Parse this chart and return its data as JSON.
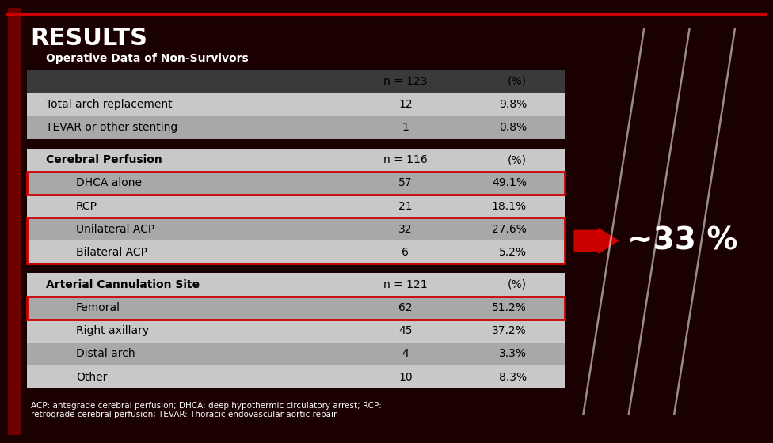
{
  "title": "RESULTS",
  "subtitle": "Operative Data of Non-Survivors",
  "background_color": "#1a0000",
  "red_highlight": "#cc0000",
  "footnote": "ACP: antegrade cerebral perfusion; DHCA: deep hypothermic circulatory arrest; RCP:\nretrograde cerebral perfusion; TEVAR: Thoracic endovascular aortic repair",
  "arrow_text": "~33 %",
  "sections": [
    {
      "type": "header",
      "label": "",
      "col1": "n = 123",
      "col2": "(%)",
      "bold": false,
      "bg": "dark",
      "indent": false,
      "red_border": false
    },
    {
      "type": "row",
      "label": "Total arch replacement",
      "col1": "12",
      "col2": "9.8%",
      "bold": false,
      "bg": "light",
      "indent": false,
      "red_border": false
    },
    {
      "type": "row",
      "label": "TEVAR or other stenting",
      "col1": "1",
      "col2": "0.8%",
      "bold": false,
      "bg": "mid",
      "indent": false,
      "red_border": false
    },
    {
      "type": "spacer"
    },
    {
      "type": "header",
      "label": "Cerebral Perfusion",
      "col1": "n = 116",
      "col2": "(%)",
      "bold": true,
      "bg": "light",
      "indent": false,
      "red_border": false
    },
    {
      "type": "row",
      "label": "DHCA alone",
      "col1": "57",
      "col2": "49.1%",
      "bold": false,
      "bg": "mid",
      "indent": true,
      "red_border": true
    },
    {
      "type": "row",
      "label": "RCP",
      "col1": "21",
      "col2": "18.1%",
      "bold": false,
      "bg": "light",
      "indent": true,
      "red_border": false
    },
    {
      "type": "row",
      "label": "Unilateral ACP",
      "col1": "32",
      "col2": "27.6%",
      "bold": false,
      "bg": "mid",
      "indent": true,
      "red_border": true
    },
    {
      "type": "row",
      "label": "Bilateral ACP",
      "col1": "6",
      "col2": "5.2%",
      "bold": false,
      "bg": "light",
      "indent": true,
      "red_border": true
    },
    {
      "type": "spacer"
    },
    {
      "type": "header",
      "label": "Arterial Cannulation Site",
      "col1": "n = 121",
      "col2": "(%)",
      "bold": true,
      "bg": "light",
      "indent": false,
      "red_border": false
    },
    {
      "type": "row",
      "label": "Femoral",
      "col1": "62",
      "col2": "51.2%",
      "bold": false,
      "bg": "mid",
      "indent": true,
      "red_border": true
    },
    {
      "type": "row",
      "label": "Right axillary",
      "col1": "45",
      "col2": "37.2%",
      "bold": false,
      "bg": "light",
      "indent": true,
      "red_border": false
    },
    {
      "type": "row",
      "label": "Distal arch",
      "col1": "4",
      "col2": "3.3%",
      "bold": false,
      "bg": "mid",
      "indent": true,
      "red_border": false
    },
    {
      "type": "row",
      "label": "Other",
      "col1": "10",
      "col2": "8.3%",
      "bold": false,
      "bg": "light",
      "indent": true,
      "red_border": false
    }
  ]
}
